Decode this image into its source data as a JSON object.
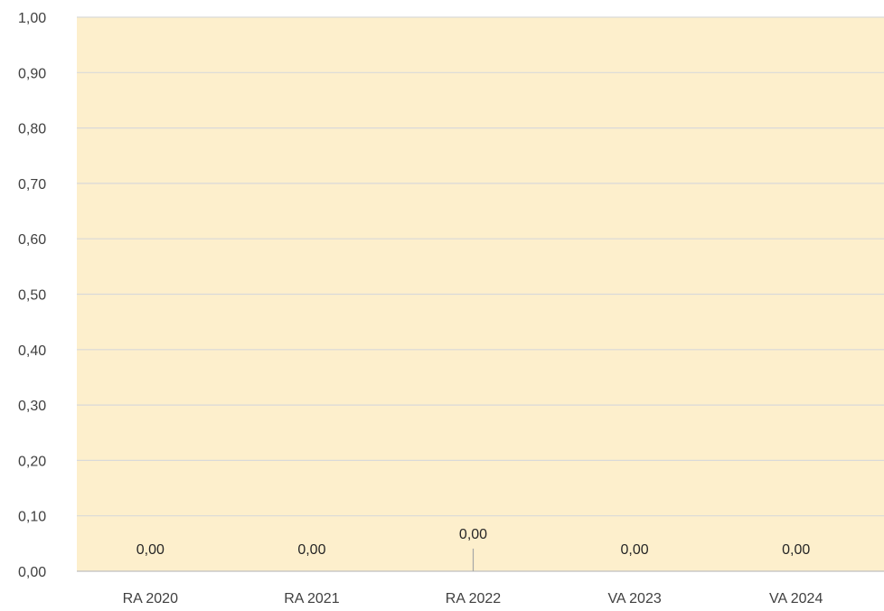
{
  "chart_data": {
    "type": "bar",
    "categories": [
      "RA 2020",
      "RA 2021",
      "RA 2022",
      "VA 2023",
      "VA 2024"
    ],
    "values": [
      0,
      0,
      0,
      0,
      0
    ],
    "data_labels": [
      "0,00",
      "0,00",
      "0,00",
      "0,00",
      "0,00"
    ],
    "ylim": [
      0,
      1
    ],
    "yticks": [
      "0,00",
      "0,10",
      "0,20",
      "0,30",
      "0,40",
      "0,50",
      "0,60",
      "0,70",
      "0,80",
      "0,90",
      "1,00"
    ],
    "grid": true,
    "legend": "none",
    "colors": {
      "plot_background": "#fdefcc",
      "gridline": "#d9d9d9",
      "text": "#404040"
    }
  }
}
